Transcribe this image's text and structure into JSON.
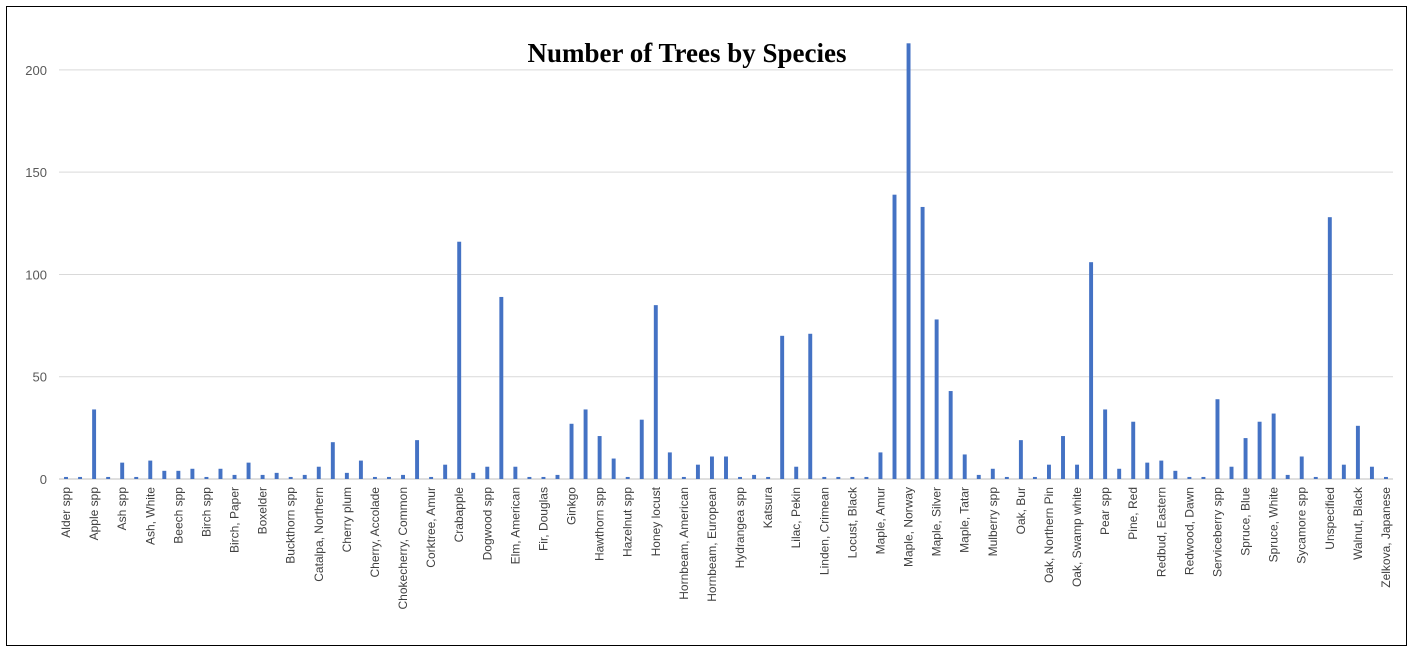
{
  "chart_data": {
    "type": "bar",
    "title": "Number of Trees by Species",
    "xlabel": "",
    "ylabel": "",
    "ylim": [
      0,
      220
    ],
    "yticks": [
      0,
      50,
      100,
      150,
      200
    ],
    "grid": true,
    "legend": "none",
    "bar_color": "#4472C4",
    "categories": [
      "Alder spp",
      "",
      "Apple spp",
      "",
      "Ash spp",
      "",
      "Ash, White",
      "",
      "Beech spp",
      "",
      "Birch spp",
      "",
      "Birch, Paper",
      "",
      "Boxelder",
      "",
      "Buckthorn spp",
      "",
      "Catalpa, Northern",
      "",
      "Cherry plum",
      "",
      "Cherry, Accolade",
      "",
      "Chokecherry, Common",
      "",
      "Corktree, Amur",
      "",
      "Crabapple",
      "",
      "Dogwood spp",
      "",
      "Elm, American",
      "",
      "Fir, Douglas",
      "",
      "Ginkgo",
      "",
      "Hawthorn spp",
      "",
      "Hazelnut spp",
      "",
      "Honey locust",
      "",
      "Hornbeam, American",
      "",
      "Hornbeam, European",
      "",
      "Hydrangea spp",
      "",
      "Katsura",
      "",
      "Lilac, Pekin",
      "",
      "Linden, Crimean",
      "",
      "Locust, Black",
      "",
      "Maple, Amur",
      "",
      "Maple, Norway",
      "",
      "Maple, Silver",
      "",
      "Maple, Tatar",
      "",
      "Mulberry spp",
      "",
      "Oak, Bur",
      "",
      "Oak, Northern Pin",
      "",
      "Oak, Swamp white",
      "",
      "Pear spp",
      "",
      "Pine, Red",
      "",
      "Redbud, Eastern",
      "",
      "Redwood, Dawn",
      "",
      "Serviceberry spp",
      "",
      "Spruce, Blue",
      "",
      "Spruce, White",
      "",
      "Sycamore spp",
      "",
      "Unspecified",
      "",
      "Walnut, Black",
      "",
      "Zelkova, Japanese"
    ],
    "values": [
      1,
      1,
      34,
      1,
      8,
      1,
      9,
      4,
      4,
      5,
      1,
      5,
      2,
      8,
      2,
      3,
      1,
      2,
      6,
      18,
      3,
      9,
      1,
      1,
      2,
      19,
      1,
      7,
      116,
      3,
      6,
      89,
      6,
      1,
      1,
      2,
      27,
      34,
      21,
      10,
      1,
      29,
      85,
      13,
      1,
      7,
      11,
      11,
      1,
      2,
      1,
      70,
      6,
      71,
      1,
      1,
      1,
      1,
      13,
      139,
      213,
      133,
      78,
      43,
      12,
      2,
      5,
      1,
      19,
      1,
      7,
      21,
      7,
      106,
      34,
      5,
      28,
      8,
      9,
      4,
      1,
      1,
      39,
      6,
      20,
      28,
      32,
      2,
      11,
      1,
      128,
      7,
      26,
      6,
      1
    ]
  }
}
